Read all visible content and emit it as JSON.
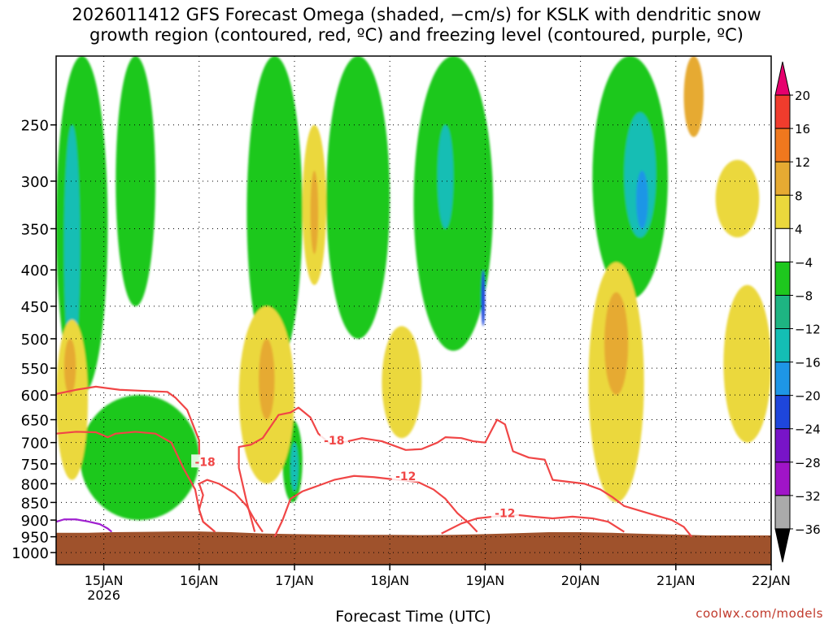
{
  "title": {
    "line1": "2026011412 GFS Forecast Omega (shaded, −cm/s) for KSLK with dendritic snow",
    "line2": "growth region (contoured, red, ºC) and freezing level (contoured, purple, ºC)"
  },
  "credit": "coolwx.com/models",
  "chart_data": {
    "type": "heatmap",
    "title": "2026011412 GFS Forecast Omega (shaded, −cm/s) for KSLK with dendritic snow growth region (contoured, red, ºC) and freezing level (contoured, purple, ºC)",
    "xlabel": "Forecast Time (UTC)",
    "ylabel": "",
    "x_ticks": [
      {
        "label": "15JAN",
        "sublabel": "2026",
        "hour": 12
      },
      {
        "label": "16JAN",
        "sublabel": "",
        "hour": 36
      },
      {
        "label": "17JAN",
        "sublabel": "",
        "hour": 60
      },
      {
        "label": "18JAN",
        "sublabel": "",
        "hour": 84
      },
      {
        "label": "19JAN",
        "sublabel": "",
        "hour": 108
      },
      {
        "label": "20JAN",
        "sublabel": "",
        "hour": 132
      },
      {
        "label": "21JAN",
        "sublabel": "",
        "hour": 156
      },
      {
        "label": "22JAN",
        "sublabel": "",
        "hour": 180
      }
    ],
    "xlim": [
      0,
      180
    ],
    "y_ticks": [
      250,
      300,
      350,
      400,
      450,
      500,
      550,
      600,
      650,
      700,
      750,
      800,
      850,
      900,
      950,
      1000
    ],
    "ylim": [
      200,
      1040
    ],
    "y_scale": "log-pressure (inverted)",
    "grid": true,
    "colorbar": {
      "labels": [
        "20",
        "16",
        "12",
        "8",
        "4",
        "−4",
        "−8",
        "−12",
        "−16",
        "−20",
        "−24",
        "−28",
        "−32",
        "−36"
      ],
      "bins": [
        {
          "min": 20,
          "max": null,
          "color": "#e6006e"
        },
        {
          "min": 16,
          "max": 20,
          "color": "#f03c2d"
        },
        {
          "min": 12,
          "max": 16,
          "color": "#f0781e"
        },
        {
          "min": 8,
          "max": 12,
          "color": "#e6aa32"
        },
        {
          "min": 4,
          "max": 8,
          "color": "#ebd83c"
        },
        {
          "min": -4,
          "max": 4,
          "color": "#ffffff"
        },
        {
          "min": -8,
          "max": -4,
          "color": "#1ec81e"
        },
        {
          "min": -12,
          "max": -8,
          "color": "#1eb482"
        },
        {
          "min": -16,
          "max": -12,
          "color": "#14beb4"
        },
        {
          "min": -20,
          "max": -16,
          "color": "#1e96e6"
        },
        {
          "min": -24,
          "max": -20,
          "color": "#1e46dc"
        },
        {
          "min": -28,
          "max": -24,
          "color": "#7814c8"
        },
        {
          "min": -32,
          "max": -28,
          "color": "#a014c8"
        },
        {
          "min": -36,
          "max": -32,
          "color": "#aaaaaa"
        },
        {
          "min": null,
          "max": -36,
          "color": "#000000"
        }
      ]
    },
    "shaded_regions": [
      {
        "value": -6,
        "hour_range": [
          0,
          13
        ],
        "p_range": [
          200,
          600
        ]
      },
      {
        "value": -6,
        "hour_range": [
          6,
          36
        ],
        "p_range": [
          600,
          900
        ]
      },
      {
        "value": -14,
        "hour_range": [
          2,
          6
        ],
        "p_range": [
          250,
          550
        ]
      },
      {
        "value": -6,
        "hour_range": [
          15,
          25
        ],
        "p_range": [
          200,
          450
        ]
      },
      {
        "value": -6,
        "hour_range": [
          48,
          62
        ],
        "p_range": [
          200,
          550
        ]
      },
      {
        "value": -6,
        "hour_range": [
          57,
          62
        ],
        "p_range": [
          650,
          850
        ]
      },
      {
        "value": -14,
        "hour_range": [
          59,
          61
        ],
        "p_range": [
          700,
          820
        ]
      },
      {
        "value": -6,
        "hour_range": [
          68,
          84
        ],
        "p_range": [
          200,
          500
        ]
      },
      {
        "value": -6,
        "hour_range": [
          90,
          110
        ],
        "p_range": [
          200,
          520
        ]
      },
      {
        "value": -16,
        "hour_range": [
          96,
          100
        ],
        "p_range": [
          250,
          350
        ]
      },
      {
        "value": -22,
        "hour_range": [
          107,
          108
        ],
        "p_range": [
          400,
          480
        ]
      },
      {
        "value": -6,
        "hour_range": [
          135,
          154
        ],
        "p_range": [
          200,
          440
        ]
      },
      {
        "value": -14,
        "hour_range": [
          143,
          151
        ],
        "p_range": [
          240,
          360
        ]
      },
      {
        "value": -18,
        "hour_range": [
          146,
          149
        ],
        "p_range": [
          290,
          350
        ]
      },
      {
        "value": 6,
        "hour_range": [
          0,
          8
        ],
        "p_range": [
          470,
          790
        ]
      },
      {
        "value": 9,
        "hour_range": [
          2,
          5
        ],
        "p_range": [
          500,
          600
        ]
      },
      {
        "value": 6,
        "hour_range": [
          46,
          60
        ],
        "p_range": [
          450,
          800
        ]
      },
      {
        "value": 9,
        "hour_range": [
          51,
          55
        ],
        "p_range": [
          500,
          650
        ]
      },
      {
        "value": 6,
        "hour_range": [
          62,
          68
        ],
        "p_range": [
          250,
          420
        ]
      },
      {
        "value": 9,
        "hour_range": [
          64,
          66
        ],
        "p_range": [
          290,
          380
        ]
      },
      {
        "value": 6,
        "hour_range": [
          82,
          92
        ],
        "p_range": [
          480,
          690
        ]
      },
      {
        "value": 6,
        "hour_range": [
          134,
          148
        ],
        "p_range": [
          390,
          850
        ]
      },
      {
        "value": 9,
        "hour_range": [
          138,
          144
        ],
        "p_range": [
          430,
          600
        ]
      },
      {
        "value": 6,
        "hour_range": [
          168,
          180
        ],
        "p_range": [
          420,
          700
        ]
      },
      {
        "value": 6,
        "hour_range": [
          166,
          177
        ],
        "p_range": [
          280,
          360
        ]
      },
      {
        "value": 9,
        "hour_range": [
          158,
          163
        ],
        "p_range": [
          200,
          260
        ]
      }
    ],
    "contours": [
      {
        "label": "-18",
        "color": "#f04646",
        "label_at": {
          "hour": 37.5,
          "p": 745
        },
        "points": [
          [
            0,
            598
          ],
          [
            5,
            590
          ],
          [
            10,
            584
          ],
          [
            16,
            590
          ],
          [
            22,
            592
          ],
          [
            28,
            594
          ],
          [
            30,
            605
          ],
          [
            33,
            630
          ],
          [
            36,
            695
          ],
          [
            36,
            730
          ]
        ]
      },
      {
        "label": "",
        "color": "#f04646",
        "points": [
          [
            0,
            680
          ],
          [
            5,
            676
          ],
          [
            10,
            677
          ],
          [
            13,
            688
          ],
          [
            15,
            680
          ],
          [
            20,
            676
          ],
          [
            25,
            680
          ],
          [
            29,
            700
          ],
          [
            32,
            760
          ],
          [
            35,
            815
          ],
          [
            36,
            870
          ],
          [
            37,
            905
          ],
          [
            40,
            935
          ]
        ]
      },
      {
        "label": "",
        "color": "#f04646",
        "points": [
          [
            40,
            935
          ],
          [
            37,
            905
          ],
          [
            36,
            870
          ],
          [
            37,
            830
          ],
          [
            36,
            800
          ],
          [
            38,
            790
          ],
          [
            41,
            800
          ],
          [
            45,
            825
          ],
          [
            48,
            860
          ],
          [
            50,
            900
          ],
          [
            52,
            935
          ]
        ]
      },
      {
        "label": "-18",
        "color": "#f04646",
        "label_at": {
          "hour": 70,
          "p": 695
        },
        "points": [
          [
            50,
            935
          ],
          [
            48,
            850
          ],
          [
            46,
            760
          ],
          [
            46,
            710
          ],
          [
            49,
            705
          ],
          [
            52,
            690
          ],
          [
            56,
            640
          ],
          [
            59,
            635
          ],
          [
            61,
            625
          ],
          [
            64,
            645
          ],
          [
            66,
            680
          ],
          [
            69,
            703
          ],
          [
            72,
            700
          ],
          [
            77,
            690
          ],
          [
            82,
            697
          ],
          [
            88,
            717
          ],
          [
            92,
            715
          ],
          [
            96,
            700
          ],
          [
            98,
            688
          ],
          [
            102,
            690
          ],
          [
            105,
            697
          ],
          [
            108,
            700
          ],
          [
            111,
            650
          ],
          [
            113,
            660
          ],
          [
            115,
            720
          ],
          [
            119,
            735
          ],
          [
            123,
            740
          ],
          [
            125,
            790
          ],
          [
            129,
            795
          ],
          [
            133,
            800
          ],
          [
            137,
            815
          ],
          [
            140,
            835
          ],
          [
            143,
            860
          ],
          [
            146,
            870
          ],
          [
            149,
            880
          ],
          [
            152,
            890
          ],
          [
            155,
            900
          ],
          [
            158,
            920
          ],
          [
            160,
            950
          ]
        ]
      },
      {
        "label": "-12",
        "color": "#f04646",
        "label_at": {
          "hour": 88,
          "p": 780
        },
        "points": [
          [
            55,
            950
          ],
          [
            57,
            900
          ],
          [
            59,
            840
          ],
          [
            62,
            820
          ],
          [
            66,
            805
          ],
          [
            70,
            790
          ],
          [
            75,
            780
          ],
          [
            80,
            783
          ],
          [
            86,
            790
          ],
          [
            91,
            795
          ],
          [
            95,
            815
          ],
          [
            98,
            840
          ],
          [
            101,
            880
          ],
          [
            104,
            910
          ],
          [
            106,
            935
          ]
        ]
      },
      {
        "label": "-12",
        "color": "#f04646",
        "label_at": {
          "hour": 113,
          "p": 880
        },
        "points": [
          [
            97,
            940
          ],
          [
            102,
            910
          ],
          [
            106,
            895
          ],
          [
            110,
            890
          ],
          [
            116,
            885
          ],
          [
            120,
            890
          ],
          [
            125,
            895
          ],
          [
            130,
            890
          ],
          [
            135,
            895
          ],
          [
            139,
            905
          ],
          [
            143,
            935
          ]
        ]
      },
      {
        "label": "",
        "color": "#a020d0",
        "points": [
          [
            0,
            905
          ],
          [
            2,
            898
          ],
          [
            5,
            898
          ],
          [
            8,
            904
          ],
          [
            11,
            912
          ],
          [
            13,
            925
          ],
          [
            14,
            935
          ]
        ]
      }
    ],
    "terrain": {
      "color": "#9f522c",
      "surface_p": [
        [
          0,
          938
        ],
        [
          8,
          938
        ],
        [
          14,
          936
        ],
        [
          22,
          935
        ],
        [
          30,
          934
        ],
        [
          36,
          934
        ],
        [
          44,
          936
        ],
        [
          52,
          940
        ],
        [
          60,
          942
        ],
        [
          68,
          943
        ],
        [
          76,
          944
        ],
        [
          84,
          944
        ],
        [
          92,
          945
        ],
        [
          100,
          944
        ],
        [
          108,
          942
        ],
        [
          116,
          939
        ],
        [
          124,
          936
        ],
        [
          132,
          936
        ],
        [
          140,
          938
        ],
        [
          148,
          941
        ],
        [
          156,
          943
        ],
        [
          164,
          946
        ],
        [
          172,
          946
        ],
        [
          180,
          946
        ]
      ]
    }
  }
}
